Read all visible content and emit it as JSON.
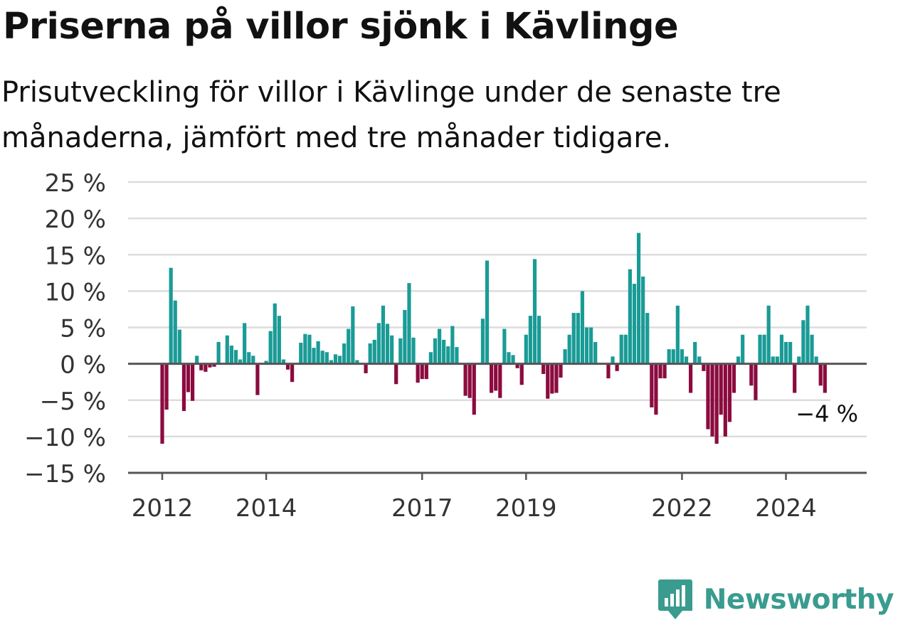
{
  "title": "Priserna på villor sjönk i Kävlinge",
  "subtitle": "Prisutveckling för villor i Kävlinge under de senaste tre månaderna, jämfört med tre månader tidigare.",
  "logo": {
    "text": "Newsworthy",
    "icon": "bar-chart-speech-bubble-icon",
    "color": "#3a9b8f"
  },
  "colors": {
    "positive": "#1a9b96",
    "negative": "#8b0b3f",
    "grid": "#dcdcdc",
    "axis": "#555555"
  },
  "chart_data": {
    "type": "bar",
    "title": "",
    "xlabel": "",
    "ylabel": "",
    "ylim": [
      -15,
      25
    ],
    "yticks": [
      25,
      20,
      15,
      10,
      5,
      0,
      -5,
      -10,
      -15
    ],
    "ytick_labels": [
      "25 %",
      "20 %",
      "15 %",
      "10 %",
      "5 %",
      "0 %",
      "−5 %",
      "−10 %",
      "−15 %"
    ],
    "xtick_labels": [
      "2012",
      "2014",
      "2017",
      "2019",
      "2022",
      "2024"
    ],
    "xtick_months": [
      0,
      24,
      60,
      84,
      120,
      144
    ],
    "grid": true,
    "last_value_label": "−4 %",
    "series": [
      {
        "values": [
          -11,
          -6.3,
          13.2,
          8.7,
          4.7,
          -6.5,
          -3.9,
          -5.1,
          1.1,
          -0.9,
          -1.1,
          -0.5,
          -0.4,
          3.0,
          0,
          3.9,
          2.5,
          1.9,
          0.6,
          5.6,
          1.6,
          1.1,
          -4.3,
          0,
          0.4,
          4.5,
          8.3,
          6.6,
          0.6,
          -0.8,
          -2.5,
          0,
          2.9,
          4.1,
          4.0,
          2.2,
          3.1,
          1.8,
          1.6,
          0.5,
          1.3,
          1.1,
          2.8,
          4.8,
          7.9,
          0.5,
          0,
          -1.3,
          2.8,
          3.3,
          5.6,
          8.0,
          5.5,
          3.9,
          -2.8,
          3.5,
          7.4,
          11.1,
          3.6,
          -2.6,
          -2.1,
          -2.1,
          1.6,
          3.5,
          4.8,
          3.3,
          2.4,
          5.2,
          2.3,
          0,
          -4.4,
          -4.7,
          -7.0,
          0,
          6.2,
          14.2,
          -4.0,
          -3.7,
          -4.7,
          4.8,
          1.6,
          1.2,
          -0.6,
          -2.9,
          4.0,
          6.6,
          14.4,
          6.6,
          -1.4,
          -4.8,
          -4.1,
          -4.0,
          -1.9,
          2.0,
          4.0,
          7.0,
          7.0,
          10.0,
          5.0,
          5.0,
          3.0,
          0,
          0,
          -2.0,
          1.0,
          -1.0,
          4.0,
          4.0,
          13.0,
          11.0,
          18.0,
          12.0,
          7.0,
          -6.0,
          -7.0,
          -2.0,
          -2.0,
          2.0,
          2.0,
          8.0,
          2.0,
          1.0,
          -4.0,
          3.0,
          1.0,
          -1.0,
          -9.0,
          -10.0,
          -11.0,
          -7.0,
          -10.0,
          -8.0,
          -4.0,
          1.0,
          4.0,
          0,
          -3.0,
          -5.0,
          4.0,
          4.0,
          8.0,
          1.0,
          1.0,
          4.0,
          3.0,
          3.0,
          -4.0,
          1.0,
          6.0,
          8.0,
          4.0,
          1.0,
          -3.0,
          -4.0
        ]
      }
    ]
  }
}
